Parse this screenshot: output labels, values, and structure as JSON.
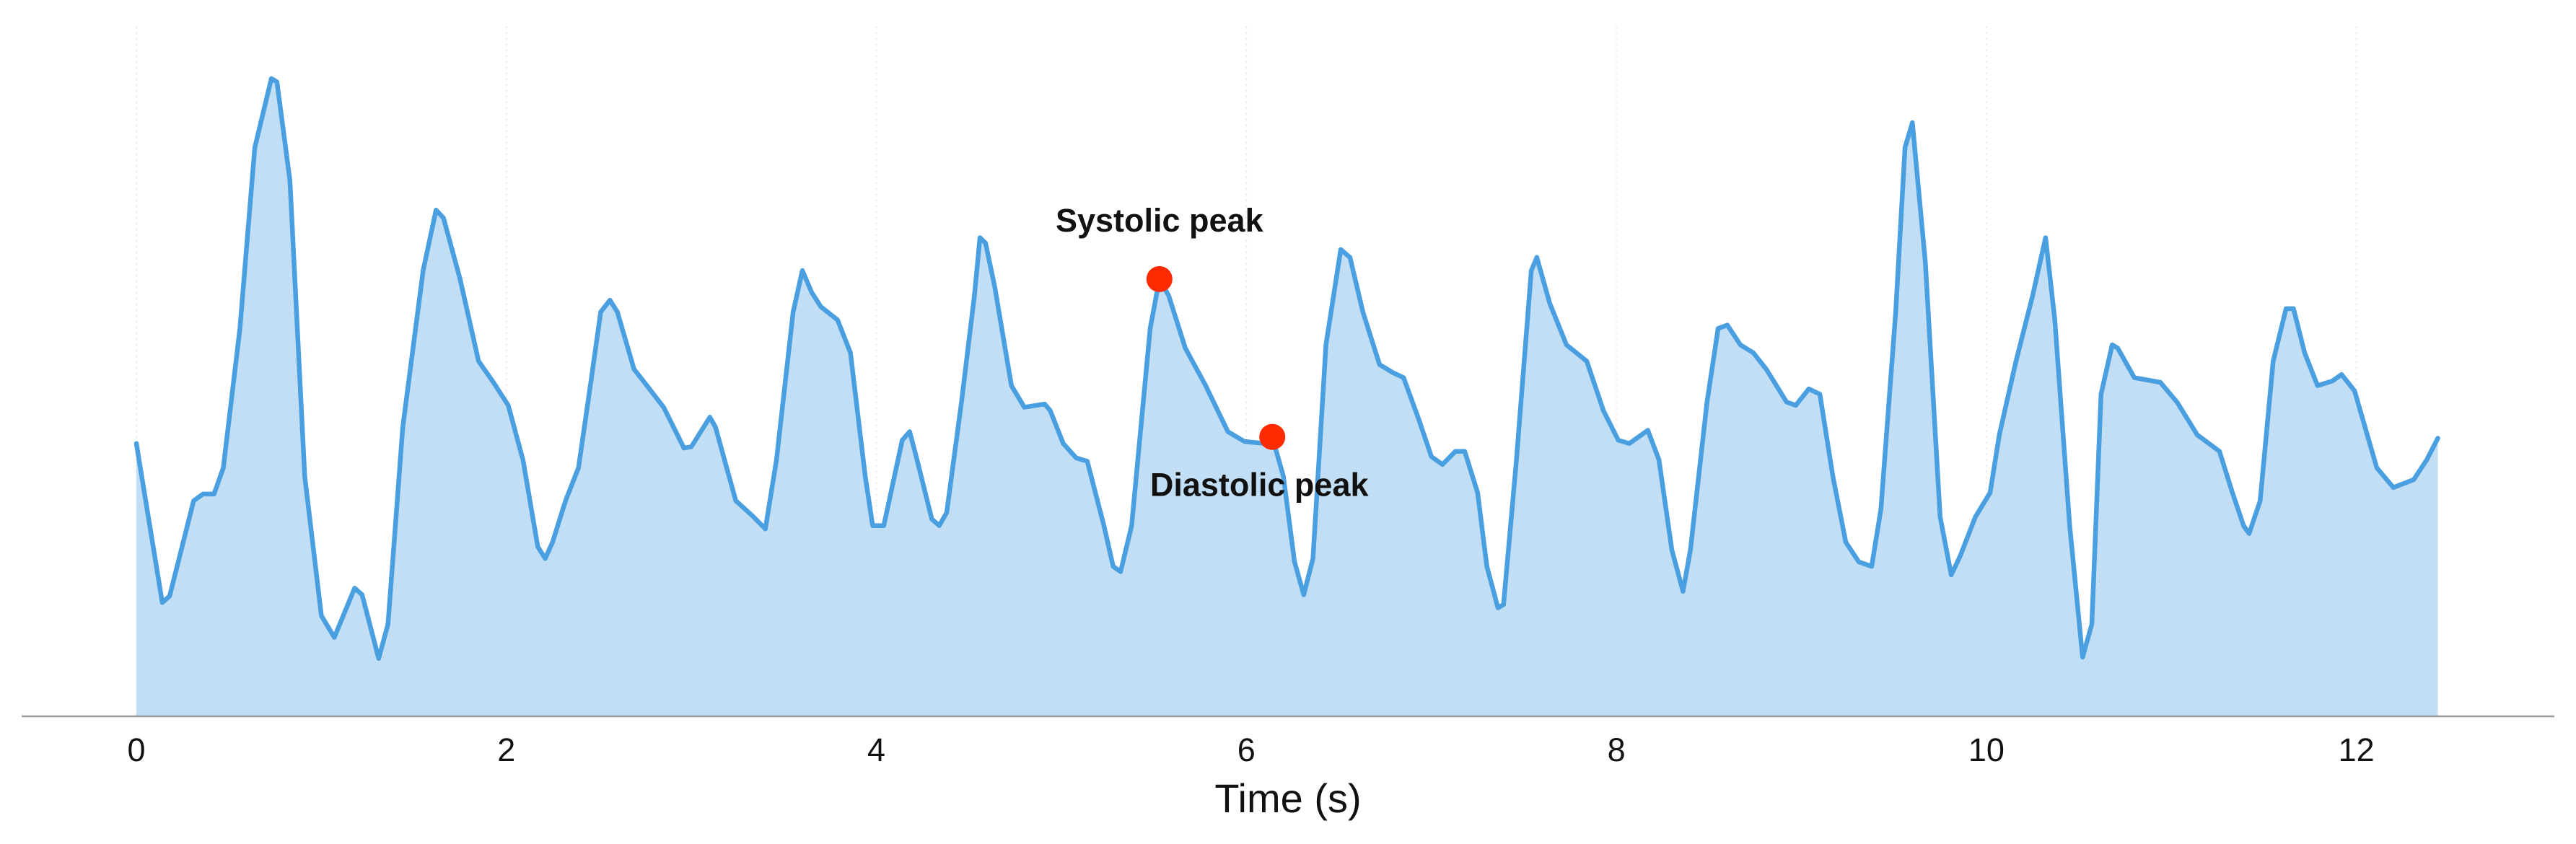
{
  "chart_data": {
    "type": "line",
    "xlabel": "Time (s)",
    "xlim": [
      -0.62,
      13.07
    ],
    "ylim": [
      0,
      105
    ],
    "xticks": [
      0,
      2,
      4,
      6,
      8,
      10,
      12
    ],
    "grid": true,
    "fill": true,
    "x": [
      0.0,
      0.14,
      0.18,
      0.31,
      0.36,
      0.42,
      0.47,
      0.56,
      0.64,
      0.73,
      0.76,
      0.83,
      0.91,
      1.0,
      1.07,
      1.18,
      1.22,
      1.31,
      1.36,
      1.44,
      1.55,
      1.62,
      1.66,
      1.75,
      1.85,
      1.93,
      2.01,
      2.09,
      2.17,
      2.21,
      2.25,
      2.32,
      2.39,
      2.46,
      2.51,
      2.56,
      2.6,
      2.69,
      2.76,
      2.85,
      2.96,
      3.0,
      3.1,
      3.13,
      3.24,
      3.33,
      3.4,
      3.46,
      3.55,
      3.6,
      3.65,
      3.7,
      3.79,
      3.86,
      3.94,
      3.98,
      4.04,
      4.14,
      4.18,
      4.22,
      4.3,
      4.34,
      4.38,
      4.46,
      4.53,
      4.56,
      4.59,
      4.64,
      4.73,
      4.8,
      4.91,
      4.94,
      5.01,
      5.08,
      5.14,
      5.23,
      5.28,
      5.32,
      5.38,
      5.48,
      5.53,
      5.58,
      5.67,
      5.78,
      5.9,
      5.99,
      6.1,
      6.14,
      6.2,
      6.26,
      6.31,
      6.36,
      6.43,
      6.51,
      6.56,
      6.63,
      6.72,
      6.79,
      6.85,
      6.93,
      7.0,
      7.06,
      7.13,
      7.18,
      7.25,
      7.3,
      7.36,
      7.39,
      7.46,
      7.54,
      7.57,
      7.64,
      7.73,
      7.84,
      7.93,
      8.01,
      8.07,
      8.17,
      8.23,
      8.3,
      8.36,
      8.4,
      8.49,
      8.55,
      8.6,
      8.67,
      8.74,
      8.81,
      8.92,
      8.97,
      9.04,
      9.1,
      9.17,
      9.24,
      9.31,
      9.38,
      9.43,
      9.51,
      9.56,
      9.6,
      9.67,
      9.75,
      9.81,
      9.86,
      9.94,
      10.02,
      10.07,
      10.16,
      10.25,
      10.32,
      10.37,
      10.45,
      10.52,
      10.57,
      10.62,
      10.68,
      10.71,
      10.8,
      10.94,
      11.03,
      11.14,
      11.26,
      11.33,
      11.39,
      11.42,
      11.48,
      11.55,
      11.62,
      11.66,
      11.72,
      11.79,
      11.87,
      11.92,
      11.99,
      12.11,
      12.2,
      12.31,
      12.38,
      12.44
    ],
    "series": [
      {
        "color": "#4a9fe0",
        "fill_color": "#c2def4",
        "values": [
          41.5,
          17.3,
          18.3,
          32.8,
          33.8,
          33.8,
          37.8,
          59,
          86.5,
          97,
          96.5,
          81.5,
          36.5,
          15.3,
          12,
          19.5,
          18.5,
          8.8,
          14,
          44,
          67.8,
          77,
          75.8,
          66.5,
          54,
          50.8,
          47.3,
          39,
          25.8,
          24,
          26.5,
          32.8,
          37.8,
          51.5,
          61.5,
          63.3,
          61.5,
          52.8,
          50.3,
          47,
          40.8,
          41,
          45.5,
          44,
          32.8,
          30.5,
          28.5,
          39,
          61.5,
          67.8,
          64.5,
          62.3,
          60.3,
          55.3,
          36.5,
          29,
          29,
          42,
          43.3,
          39,
          30,
          29,
          31,
          47.8,
          64,
          72.8,
          72,
          65.3,
          50.3,
          47,
          47.5,
          46.5,
          41.5,
          39.3,
          38.8,
          29,
          22.8,
          22,
          29,
          59,
          66.5,
          64,
          56,
          50.3,
          43.3,
          41.8,
          41.5,
          42.5,
          36.5,
          23.5,
          18.5,
          24,
          56.5,
          71,
          69.8,
          61.5,
          53.5,
          52.3,
          51.5,
          45.3,
          39.5,
          38.3,
          40.3,
          40.3,
          34,
          22.8,
          16.5,
          17,
          39,
          67.8,
          69.8,
          62.8,
          56.5,
          54,
          46.5,
          42,
          41.5,
          43.5,
          39,
          25.3,
          19,
          25.3,
          47.8,
          59,
          59.5,
          56.5,
          55.3,
          52.8,
          47.8,
          47.3,
          49.8,
          49,
          36.5,
          26.5,
          23.5,
          22.8,
          31.5,
          61.5,
          86.5,
          90.3,
          69,
          30.3,
          21.5,
          24.5,
          30.3,
          34,
          42.8,
          54,
          64,
          72.8,
          60.3,
          29,
          9,
          14,
          49,
          56.5,
          56,
          51.5,
          50.8,
          47.8,
          42.8,
          40.3,
          34,
          29,
          27.8,
          32.8,
          54,
          62,
          62,
          55.3,
          50.3,
          51,
          52,
          49.5,
          37.8,
          34.8,
          36,
          39,
          42.3
        ]
      }
    ],
    "annotations": [
      {
        "text": "Systolic peak",
        "x": 5.53,
        "y": 66.5,
        "color": "#ff2a00",
        "placement": "above"
      },
      {
        "text": "Diastolic peak",
        "x": 6.14,
        "y": 42.5,
        "color": "#ff2a00",
        "placement": "below"
      }
    ]
  }
}
